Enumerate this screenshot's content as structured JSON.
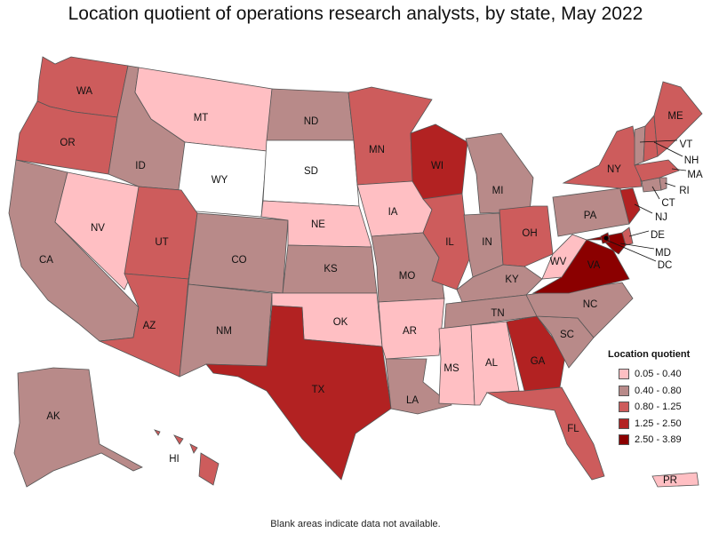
{
  "title": "Location quotient of operations research analysts, by state, May 2022",
  "footnote": "Blank areas indicate data not available.",
  "legend": {
    "title": "Location quotient",
    "classes": [
      {
        "label": "0.05 - 0.40",
        "color": "#ffbfc3"
      },
      {
        "label": "0.40 - 0.80",
        "color": "#b88a89"
      },
      {
        "label": "0.80 - 1.25",
        "color": "#cd5c5c"
      },
      {
        "label": "1.25 - 2.50",
        "color": "#b22222"
      },
      {
        "label": "2.50 - 3.89",
        "color": "#8b0000"
      }
    ],
    "no_data_color": "#ffffff"
  },
  "states": [
    {
      "abbr": "WA",
      "cls": 2
    },
    {
      "abbr": "OR",
      "cls": 2
    },
    {
      "abbr": "CA",
      "cls": 1
    },
    {
      "abbr": "NV",
      "cls": 0
    },
    {
      "abbr": "ID",
      "cls": 1
    },
    {
      "abbr": "MT",
      "cls": 0
    },
    {
      "abbr": "WY",
      "cls": null
    },
    {
      "abbr": "UT",
      "cls": 2
    },
    {
      "abbr": "AZ",
      "cls": 2
    },
    {
      "abbr": "CO",
      "cls": 1
    },
    {
      "abbr": "NM",
      "cls": 1
    },
    {
      "abbr": "ND",
      "cls": 1
    },
    {
      "abbr": "SD",
      "cls": null
    },
    {
      "abbr": "NE",
      "cls": 0
    },
    {
      "abbr": "KS",
      "cls": 1
    },
    {
      "abbr": "OK",
      "cls": 0
    },
    {
      "abbr": "TX",
      "cls": 3
    },
    {
      "abbr": "MN",
      "cls": 2
    },
    {
      "abbr": "IA",
      "cls": 0
    },
    {
      "abbr": "MO",
      "cls": 1
    },
    {
      "abbr": "AR",
      "cls": 0
    },
    {
      "abbr": "LA",
      "cls": 1
    },
    {
      "abbr": "WI",
      "cls": 3
    },
    {
      "abbr": "IL",
      "cls": 2
    },
    {
      "abbr": "MI",
      "cls": 1
    },
    {
      "abbr": "IN",
      "cls": 1
    },
    {
      "abbr": "OH",
      "cls": 2
    },
    {
      "abbr": "KY",
      "cls": 1
    },
    {
      "abbr": "TN",
      "cls": 1
    },
    {
      "abbr": "MS",
      "cls": 0
    },
    {
      "abbr": "AL",
      "cls": 0
    },
    {
      "abbr": "GA",
      "cls": 3
    },
    {
      "abbr": "FL",
      "cls": 2
    },
    {
      "abbr": "SC",
      "cls": 1
    },
    {
      "abbr": "NC",
      "cls": 1
    },
    {
      "abbr": "VA",
      "cls": 4
    },
    {
      "abbr": "WV",
      "cls": 0
    },
    {
      "abbr": "PA",
      "cls": 1
    },
    {
      "abbr": "NY",
      "cls": 2
    },
    {
      "abbr": "NJ",
      "cls": 3
    },
    {
      "abbr": "DE",
      "cls": 2
    },
    {
      "abbr": "MD",
      "cls": 4
    },
    {
      "abbr": "DC",
      "cls": 4
    },
    {
      "abbr": "CT",
      "cls": 1
    },
    {
      "abbr": "RI",
      "cls": 1
    },
    {
      "abbr": "MA",
      "cls": 2
    },
    {
      "abbr": "VT",
      "cls": 1
    },
    {
      "abbr": "NH",
      "cls": 2
    },
    {
      "abbr": "ME",
      "cls": 2
    },
    {
      "abbr": "AK",
      "cls": 1
    },
    {
      "abbr": "HI",
      "cls": 2
    },
    {
      "abbr": "PR",
      "cls": 0
    }
  ]
}
